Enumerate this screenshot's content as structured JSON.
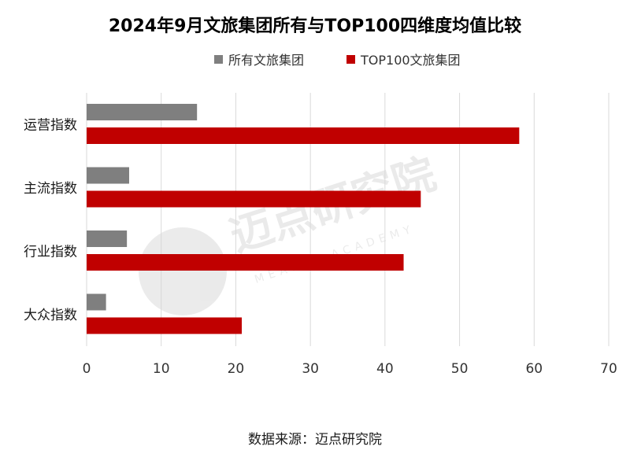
{
  "chart_data": {
    "type": "bar",
    "orientation": "horizontal",
    "title": "2024年9月文旅集团所有与TOP100四维度均值比较",
    "categories": [
      "运营指数",
      "主流指数",
      "行业指数",
      "大众指数"
    ],
    "series": [
      {
        "name": "所有文旅集团",
        "color": "#7f7f7f",
        "values": [
          14.8,
          5.7,
          5.4,
          2.6
        ]
      },
      {
        "name": "TOP100文旅集团",
        "color": "#c00000",
        "values": [
          58.0,
          44.8,
          42.5,
          20.8
        ]
      }
    ],
    "xlim": [
      0,
      70
    ],
    "xticks": [
      0,
      10,
      20,
      30,
      40,
      50,
      60,
      70
    ],
    "grid": true,
    "legend_position": "top"
  },
  "source": "数据来源：迈点研究院",
  "watermark": {
    "text": "迈点研究院",
    "subtext": "MEADIN ACADEMY"
  }
}
